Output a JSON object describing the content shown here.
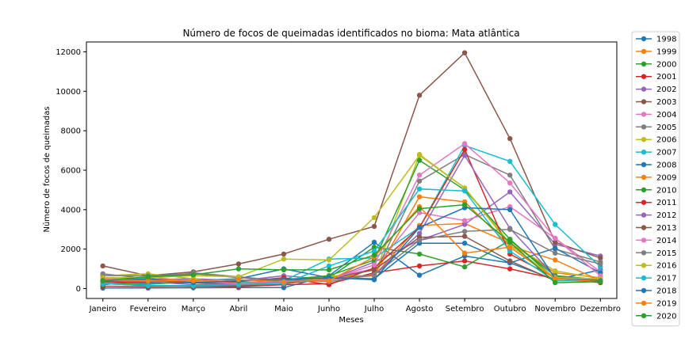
{
  "chart_data": {
    "type": "line",
    "title": "Número de focos de queimadas identificados no bioma: Mata atlântica",
    "xlabel": "Meses",
    "ylabel": "Número de focos de queimadas",
    "categories": [
      "Janeiro",
      "Fevereiro",
      "Março",
      "Abril",
      "Maio",
      "Junho",
      "Julho",
      "Agosto",
      "Setembro",
      "Outubro",
      "Novembro",
      "Dezembro"
    ],
    "ylim": [
      -500,
      12500
    ],
    "yticks": [
      0,
      2000,
      4000,
      6000,
      8000,
      10000,
      12000
    ],
    "yticklabels": [
      "0",
      "2000",
      "4000",
      "6000",
      "8000",
      "10000",
      "12000"
    ],
    "grid": false,
    "legend_position": "outside-right",
    "series": [
      {
        "name": "1998",
        "color": "#1f77b4",
        "values": [
          30,
          30,
          40,
          50,
          50,
          650,
          2350,
          680,
          1650,
          1300,
          450,
          950
        ]
      },
      {
        "name": "1999",
        "color": "#ff7f0e",
        "values": [
          400,
          450,
          300,
          200,
          350,
          600,
          650,
          3200,
          3300,
          2300,
          800,
          550
        ]
      },
      {
        "name": "2000",
        "color": "#2ca02c",
        "values": [
          250,
          220,
          350,
          300,
          250,
          550,
          2100,
          1750,
          1100,
          2450,
          650,
          450
        ]
      },
      {
        "name": "2001",
        "color": "#d62728",
        "values": [
          120,
          100,
          120,
          100,
          200,
          250,
          800,
          1150,
          1400,
          1000,
          500,
          400
        ]
      },
      {
        "name": "2002",
        "color": "#9467bd",
        "values": [
          350,
          450,
          500,
          400,
          650,
          450,
          1350,
          2450,
          3250,
          4900,
          2250,
          1650
        ]
      },
      {
        "name": "2003",
        "color": "#8c564b",
        "values": [
          1150,
          650,
          850,
          1250,
          1750,
          2500,
          3150,
          9800,
          11950,
          7600,
          2350,
          1550
        ]
      },
      {
        "name": "2004",
        "color": "#e377c2",
        "values": [
          300,
          350,
          450,
          300,
          300,
          550,
          1000,
          3850,
          3450,
          4150,
          2550,
          850
        ]
      },
      {
        "name": "2005",
        "color": "#7f7f7f",
        "values": [
          750,
          500,
          800,
          600,
          400,
          500,
          700,
          5450,
          6800,
          5750,
          2000,
          1350
        ]
      },
      {
        "name": "2006",
        "color": "#bcbd22",
        "values": [
          650,
          750,
          500,
          150,
          300,
          650,
          650,
          6800,
          5100,
          2300,
          900,
          500
        ]
      },
      {
        "name": "2007",
        "color": "#17becf",
        "values": [
          350,
          250,
          350,
          300,
          400,
          1500,
          1550,
          3100,
          7250,
          6450,
          3250,
          1100
        ]
      },
      {
        "name": "2008",
        "color": "#1f77b4",
        "values": [
          550,
          350,
          400,
          500,
          1000,
          550,
          500,
          2300,
          2300,
          1300,
          2050,
          800
        ]
      },
      {
        "name": "2009",
        "color": "#ff7f0e",
        "values": [
          500,
          600,
          350,
          200,
          500,
          450,
          650,
          4650,
          4400,
          2150,
          1450,
          400
        ]
      },
      {
        "name": "2010",
        "color": "#2ca02c",
        "values": [
          200,
          400,
          300,
          250,
          450,
          650,
          1450,
          6500,
          5000,
          2500,
          500,
          350
        ]
      },
      {
        "name": "2011",
        "color": "#d62728",
        "values": [
          350,
          300,
          300,
          350,
          550,
          200,
          1050,
          3100,
          7050,
          1750,
          550,
          300
        ]
      },
      {
        "name": "2012",
        "color": "#9467bd",
        "values": [
          400,
          350,
          200,
          250,
          350,
          450,
          700,
          2800,
          6750,
          3050,
          600,
          400
        ]
      },
      {
        "name": "2013",
        "color": "#8c564b",
        "values": [
          250,
          150,
          100,
          150,
          250,
          500,
          950,
          2600,
          2650,
          1400,
          400,
          400
        ]
      },
      {
        "name": "2014",
        "color": "#e377c2",
        "values": [
          500,
          500,
          400,
          250,
          400,
          450,
          1200,
          5750,
          7350,
          5350,
          2550,
          650
        ]
      },
      {
        "name": "2015",
        "color": "#7f7f7f",
        "values": [
          650,
          650,
          750,
          550,
          450,
          350,
          700,
          2450,
          2900,
          3000,
          1800,
          1250
        ]
      },
      {
        "name": "2016",
        "color": "#bcbd22",
        "values": [
          550,
          550,
          650,
          600,
          1500,
          1450,
          3600,
          6750,
          5100,
          2200,
          550,
          500
        ]
      },
      {
        "name": "2017",
        "color": "#17becf",
        "values": [
          250,
          150,
          150,
          200,
          250,
          1150,
          1900,
          5050,
          4950,
          1900,
          400,
          400
        ]
      },
      {
        "name": "2018",
        "color": "#1f77b4",
        "values": [
          400,
          500,
          300,
          400,
          450,
          550,
          450,
          3100,
          4100,
          4000,
          500,
          400
        ]
      },
      {
        "name": "2019",
        "color": "#ff7f0e",
        "values": [
          450,
          400,
          400,
          450,
          350,
          400,
          1600,
          4150,
          1800,
          2100,
          500,
          350
        ]
      },
      {
        "name": "2020",
        "color": "#2ca02c",
        "values": [
          400,
          600,
          700,
          1000,
          950,
          950,
          1700,
          4050,
          4250,
          2350,
          300,
          350
        ]
      }
    ]
  }
}
